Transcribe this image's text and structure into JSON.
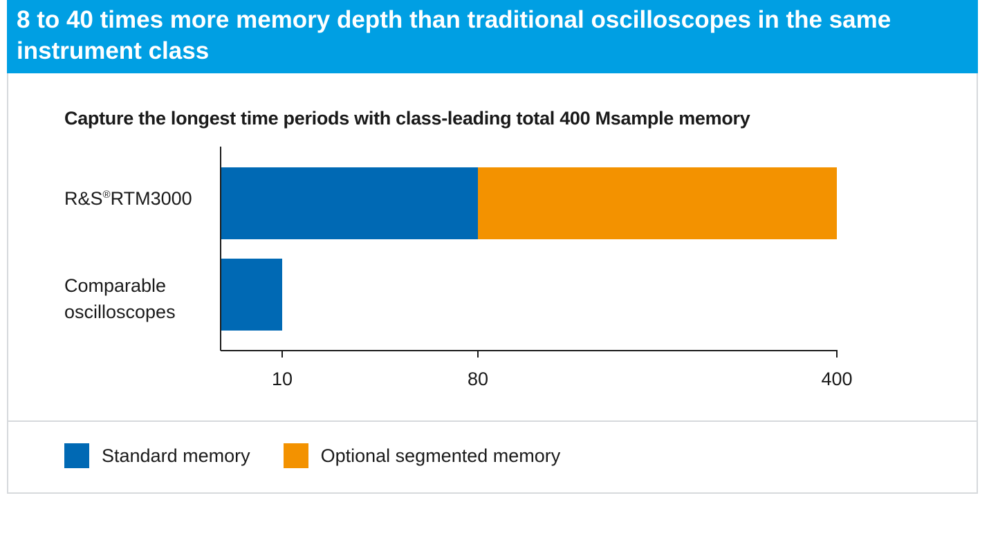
{
  "header": {
    "title": "8 to 40 times more memory depth than traditional oscilloscopes in the same instrument class"
  },
  "colors": {
    "header_bg": "#009fe3",
    "standard": "#0069b4",
    "optional": "#f39200"
  },
  "chart_data": {
    "type": "bar",
    "orientation": "horizontal",
    "stacked": true,
    "title": "Capture the longest time periods with class-leading total 400 Msample memory",
    "categories": [
      "R&S®RTM3000",
      "Comparable oscilloscopes"
    ],
    "category_lines": [
      [
        "R&S",
        "®",
        "RTM3000"
      ],
      [
        "Comparable",
        "oscilloscopes"
      ]
    ],
    "series": [
      {
        "name": "Standard memory",
        "values": [
          80,
          10
        ]
      },
      {
        "name": "Optional segmented memory",
        "values": [
          320,
          0
        ]
      }
    ],
    "x_ticks": [
      "10",
      "80",
      "400"
    ],
    "x_tick_values": [
      10,
      80,
      400
    ],
    "axis_scale": "piecewise",
    "grid": false,
    "legend_position": "bottom-left"
  }
}
